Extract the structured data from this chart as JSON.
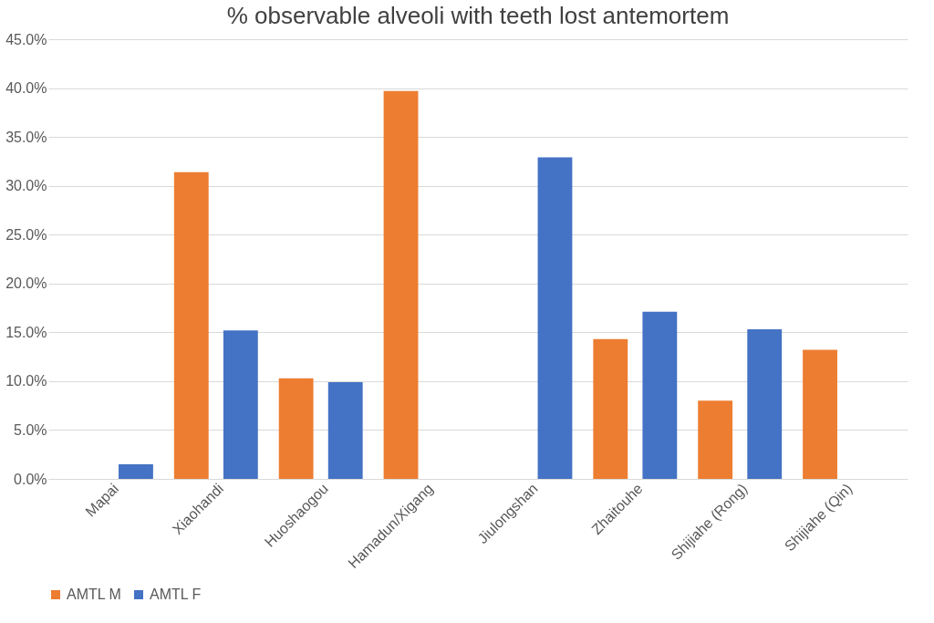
{
  "chart_data": {
    "type": "bar",
    "title": "% observable alveoli with teeth lost antemortem",
    "categories": [
      "Mapai",
      "Xiaohandi",
      "Huoshaogou",
      "Hamadun/Xigang",
      "Jiulongshan",
      "Zhaitouhe",
      "Shijiahe (Rong)",
      "Shijiahe (Qin)"
    ],
    "series": [
      {
        "name": "AMTL M",
        "color": "#ed7d31",
        "values": [
          null,
          31.4,
          10.3,
          39.7,
          null,
          14.3,
          8.0,
          13.2
        ]
      },
      {
        "name": "AMTL F",
        "color": "#4472c4",
        "values": [
          1.5,
          15.2,
          9.9,
          null,
          32.9,
          17.1,
          15.3,
          null
        ]
      }
    ],
    "ylim": [
      0,
      45
    ],
    "yticks": [
      {
        "value": 0,
        "label": "0.0%"
      },
      {
        "value": 5,
        "label": "5.0%"
      },
      {
        "value": 10,
        "label": "10.0%"
      },
      {
        "value": 15,
        "label": "15.0%"
      },
      {
        "value": 20,
        "label": "20.0%"
      },
      {
        "value": 25,
        "label": "25.0%"
      },
      {
        "value": 30,
        "label": "30.0%"
      },
      {
        "value": 35,
        "label": "35.0%"
      },
      {
        "value": 40,
        "label": "40.0%"
      },
      {
        "value": 45,
        "label": "45.0%"
      }
    ],
    "grid": "y",
    "legend": "bottom"
  }
}
